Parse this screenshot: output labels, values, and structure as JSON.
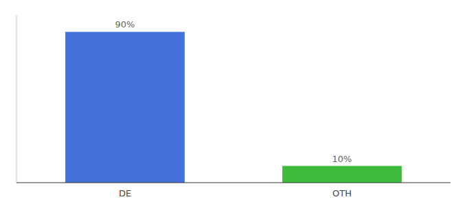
{
  "chart_data": {
    "type": "bar",
    "categories": [
      "DE",
      "OTH"
    ],
    "values": [
      90,
      10
    ],
    "value_labels": [
      "90%",
      "10%"
    ],
    "colors": [
      "#4472db",
      "#3dbb3d"
    ],
    "ylim": [
      0,
      100
    ],
    "data_labels": true,
    "tick_labels": "x"
  }
}
